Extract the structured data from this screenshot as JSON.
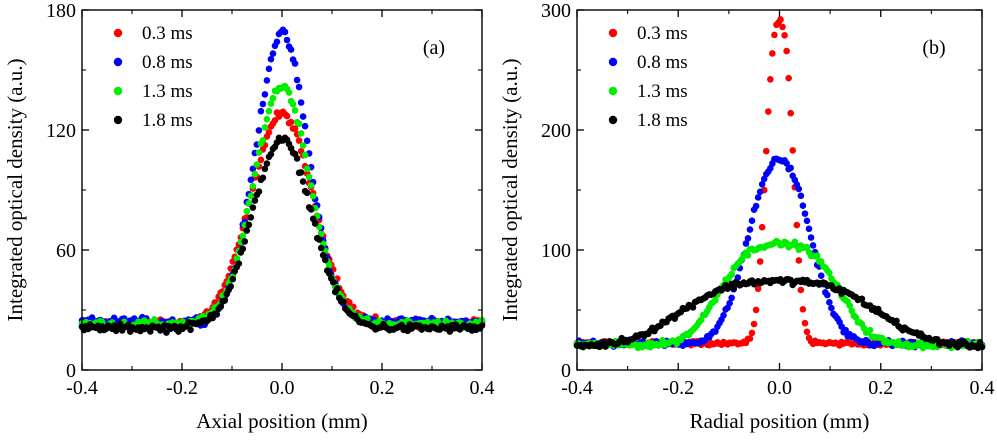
{
  "colors": {
    "0.3 ms": "#ff0000",
    "0.8 ms": "#0000ff",
    "1.3 ms": "#00ee00",
    "1.8 ms": "#000000"
  },
  "chart_data": [
    {
      "type": "scatter",
      "panel_label": "(a)",
      "xlabel": "Axial position (mm)",
      "ylabel": "Integrated optical density (a.u.)",
      "xlim": [
        -0.4,
        0.4
      ],
      "ylim": [
        0,
        180
      ],
      "xticks": [
        -0.4,
        -0.2,
        0.0,
        0.2,
        0.4
      ],
      "xtick_labels": [
        "-0.4",
        "-0.2",
        "0.0",
        "0.2",
        "0.4"
      ],
      "yticks": [
        0,
        60,
        120,
        180
      ],
      "ytick_labels": [
        "0",
        "60",
        "120",
        "180"
      ],
      "legend": "top-left",
      "series": [
        {
          "name": "0.3 ms",
          "color": "#ff0000",
          "baseline": 23,
          "peak": 128,
          "sigma": 0.062,
          "noise": 1.6,
          "x": [],
          "y": []
        },
        {
          "name": "0.8 ms",
          "color": "#0000ff",
          "baseline": 24,
          "peak": 168,
          "sigma": 0.052,
          "noise": 1.8,
          "x": [],
          "y": []
        },
        {
          "name": "1.3 ms",
          "color": "#00ee00",
          "baseline": 23,
          "peak": 142,
          "sigma": 0.056,
          "noise": 1.6,
          "x": [],
          "y": []
        },
        {
          "name": "1.8 ms",
          "color": "#000000",
          "baseline": 21,
          "peak": 115,
          "sigma": 0.06,
          "noise": 1.6,
          "x": [],
          "y": []
        }
      ]
    },
    {
      "type": "scatter",
      "panel_label": "(b)",
      "xlabel": "Radial position (mm)",
      "ylabel": "Integrated optical density (a.u.)",
      "xlim": [
        -0.4,
        0.4
      ],
      "ylim": [
        0,
        300
      ],
      "xticks": [
        -0.4,
        -0.2,
        0.0,
        0.2,
        0.4
      ],
      "xtick_labels": [
        "-0.4",
        "-0.2",
        "0.0",
        "0.2",
        "0.4"
      ],
      "yticks": [
        0,
        100,
        200,
        300
      ],
      "ytick_labels": [
        "0",
        "100",
        "200",
        "300"
      ],
      "legend": "top-left",
      "series": [
        {
          "name": "0.3 ms",
          "color": "#ff0000",
          "baseline": 22,
          "peak": 290,
          "sigma": 0.026,
          "noise": 1.5,
          "x": [],
          "y": []
        },
        {
          "name": "0.8 ms",
          "color": "#0000ff",
          "baseline": 22,
          "peak": 175,
          "sigma": 0.06,
          "noise": 2.0,
          "x": [],
          "y": []
        },
        {
          "name": "1.3 ms",
          "color": "#00ee00",
          "baseline": 21,
          "peak": 105,
          "sigma": 0.11,
          "noise": 2.0,
          "x": [],
          "y": []
        },
        {
          "name": "1.8 ms",
          "color": "#000000",
          "baseline": 20,
          "peak": 74,
          "sigma": 0.18,
          "noise": 2.0,
          "x": [],
          "y": []
        }
      ]
    }
  ]
}
